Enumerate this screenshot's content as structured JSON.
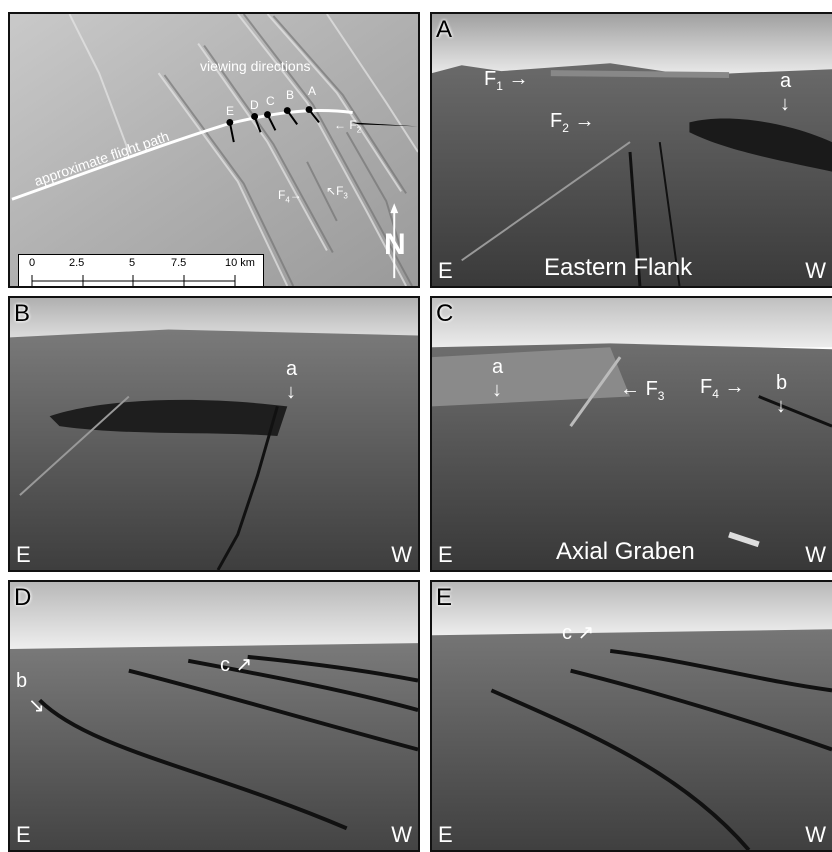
{
  "map": {
    "viewing_label": "viewing directions",
    "flight_label": "approximate flight path",
    "points": [
      "E",
      "D",
      "C",
      "B",
      "A"
    ],
    "faults": [
      {
        "name": "F",
        "sub": "2"
      },
      {
        "name": "F",
        "sub": "4"
      },
      {
        "name": "F",
        "sub": "3"
      }
    ],
    "scale_ticks": [
      "0",
      "2.5",
      "5",
      "7.5",
      "10 km"
    ]
  },
  "photos": [
    {
      "label": "A",
      "left_dir": "E",
      "right_dir": "W",
      "caption": "Eastern Flank",
      "annotations": [
        {
          "text": "F",
          "sub": "1"
        },
        {
          "text": "F",
          "sub": "2"
        },
        {
          "text": "a",
          "sub": ""
        }
      ]
    },
    {
      "label": "B",
      "left_dir": "E",
      "right_dir": "W",
      "caption": "",
      "annotations": [
        {
          "text": "a",
          "sub": ""
        }
      ]
    },
    {
      "label": "C",
      "left_dir": "E",
      "right_dir": "W",
      "caption": "Axial Graben",
      "annotations": [
        {
          "text": "a",
          "sub": ""
        },
        {
          "text": "F",
          "sub": "3"
        },
        {
          "text": "F",
          "sub": "4"
        },
        {
          "text": "b",
          "sub": ""
        }
      ]
    },
    {
      "label": "D",
      "left_dir": "E",
      "right_dir": "W",
      "caption": "",
      "annotations": [
        {
          "text": "b",
          "sub": ""
        },
        {
          "text": "c",
          "sub": ""
        }
      ]
    },
    {
      "label": "E",
      "left_dir": "E",
      "right_dir": "W",
      "caption": "",
      "annotations": [
        {
          "text": "c",
          "sub": ""
        }
      ]
    }
  ]
}
